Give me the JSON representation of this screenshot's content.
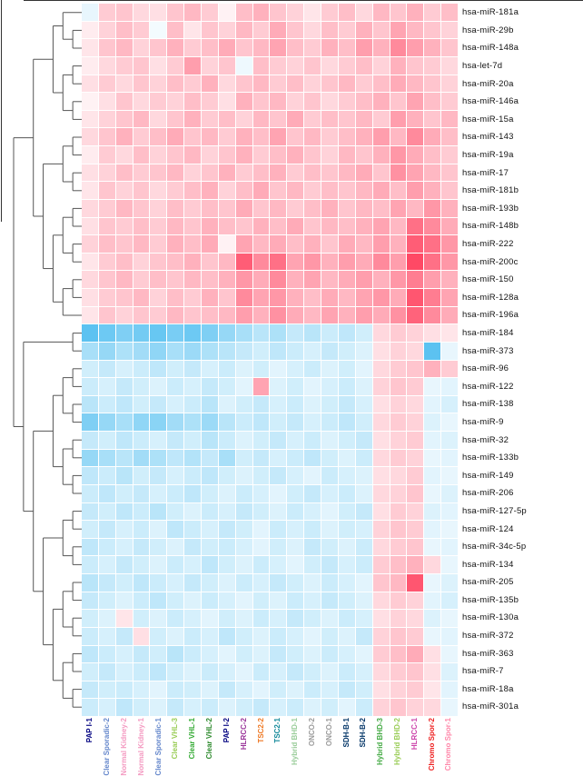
{
  "figure": {
    "background": "#ffffff",
    "dendrogram_line_color": "#555555"
  },
  "chart_data": {
    "type": "heatmap",
    "title": "",
    "xlabel": "",
    "ylabel": "",
    "legend_position": "none",
    "grid": false,
    "rows": [
      "hsa-miR-181a",
      "hsa-miR-29b",
      "hsa-miR-148a",
      "hsa-let-7d",
      "hsa-miR-20a",
      "hsa-miR-146a",
      "hsa-miR-15a",
      "hsa-miR-143",
      "hsa-miR-19a",
      "hsa-miR-17",
      "hsa-miR-181b",
      "hsa-miR-193b",
      "hsa-miR-148b",
      "hsa-miR-222",
      "hsa-miR-200c",
      "hsa-miR-150",
      "hsa-miR-128a",
      "hsa-miR-196a",
      "hsa-miR-184",
      "hsa-miR-373",
      "hsa-miR-96",
      "hsa-miR-122",
      "hsa-miR-138",
      "hsa-miR-9",
      "hsa-miR-32",
      "hsa-miR-133b",
      "hsa-miR-149",
      "hsa-miR-206",
      "hsa-miR-127-5p",
      "hsa-miR-124",
      "hsa-miR-34c-5p",
      "hsa-miR-134",
      "hsa-miR-205",
      "hsa-miR-135b",
      "hsa-miR-130a",
      "hsa-miR-372",
      "hsa-miR-363",
      "hsa-miR-7",
      "hsa-miR-18a",
      "hsa-miR-301a"
    ],
    "columns": [
      {
        "label": "PAP I-1",
        "color": "#000080"
      },
      {
        "label": "Clear Sporadic-2",
        "color": "#6688cc"
      },
      {
        "label": "Normal Kidney-2",
        "color": "#f49ac1"
      },
      {
        "label": "Normal Kidney-1",
        "color": "#f49ac1"
      },
      {
        "label": "Clear Sporadic-1",
        "color": "#6688cc"
      },
      {
        "label": "Clear VHL-3",
        "color": "#99cc55"
      },
      {
        "label": "Clear VHL-1",
        "color": "#33aa33"
      },
      {
        "label": "Clear VHL-2",
        "color": "#2d8a2d"
      },
      {
        "label": "PAP I-2",
        "color": "#000080"
      },
      {
        "label": "HLRCC-2",
        "color": "#993399"
      },
      {
        "label": "TSC2-2",
        "color": "#ee7722"
      },
      {
        "label": "TSC2-1",
        "color": "#118899"
      },
      {
        "label": "Hybrid BHD-1",
        "color": "#99cc99"
      },
      {
        "label": "ONCO-2",
        "color": "#999999"
      },
      {
        "label": "ONCO-1",
        "color": "#999999"
      },
      {
        "label": "SDH-B-1",
        "color": "#003366"
      },
      {
        "label": "SDH-B-2",
        "color": "#003366"
      },
      {
        "label": "Hybrid BHD-3",
        "color": "#44aa44"
      },
      {
        "label": "Hybrid BHD-2",
        "color": "#99cc55"
      },
      {
        "label": "HLRCC-1",
        "color": "#cc44aa"
      },
      {
        "label": "Chromo Spor-2",
        "color": "#ee2222"
      },
      {
        "label": "Chromo Spor-1",
        "color": "#ff88aa"
      }
    ],
    "colorscale": {
      "min": -3,
      "max": 3,
      "negative_color": "#50bef0",
      "zero_color": "#ffffff",
      "positive_color": "#ff3c5a"
    },
    "values": [
      [
        -0.4,
        0.8,
        0.9,
        0.6,
        0.5,
        0.9,
        1.1,
        0.8,
        0.2,
        1.0,
        1.2,
        0.9,
        0.7,
        0.4,
        0.8,
        1.0,
        0.6,
        1.1,
        0.9,
        1.2,
        0.8,
        1.0
      ],
      [
        0.3,
        0.7,
        1.0,
        0.8,
        -0.2,
        1.0,
        0.4,
        0.9,
        0.7,
        1.1,
        0.8,
        1.3,
        0.9,
        0.6,
        1.0,
        0.8,
        1.2,
        0.9,
        1.4,
        1.1,
        0.9,
        0.7
      ],
      [
        0.4,
        0.9,
        1.1,
        0.7,
        0.9,
        1.2,
        0.8,
        1.0,
        1.3,
        0.9,
        1.1,
        1.4,
        1.0,
        0.8,
        1.2,
        1.0,
        1.5,
        1.2,
        1.8,
        1.5,
        1.2,
        0.9
      ],
      [
        0.3,
        0.6,
        0.8,
        0.9,
        0.5,
        0.8,
        1.5,
        0.7,
        0.9,
        -0.3,
        1.0,
        0.8,
        0.7,
        0.9,
        0.6,
        0.8,
        1.0,
        0.7,
        1.2,
        0.9,
        0.8,
        0.6
      ],
      [
        0.5,
        0.8,
        0.6,
        0.9,
        0.7,
        1.0,
        0.8,
        1.2,
        0.6,
        0.9,
        1.1,
        0.8,
        1.0,
        0.7,
        0.9,
        1.1,
        0.8,
        1.0,
        1.3,
        1.1,
        0.9,
        0.7
      ],
      [
        0.2,
        0.5,
        0.9,
        0.6,
        0.8,
        0.7,
        1.0,
        0.8,
        0.5,
        1.2,
        0.9,
        1.1,
        0.7,
        0.9,
        0.6,
        0.8,
        1.0,
        1.2,
        0.9,
        1.4,
        1.0,
        0.8
      ],
      [
        0.4,
        0.7,
        0.9,
        1.1,
        0.6,
        0.9,
        1.2,
        0.8,
        1.0,
        0.7,
        1.1,
        0.9,
        1.3,
        0.8,
        1.0,
        0.9,
        1.1,
        0.8,
        1.5,
        1.2,
        0.9,
        1.1
      ],
      [
        0.6,
        0.9,
        1.2,
        0.8,
        1.0,
        1.3,
        0.9,
        1.1,
        0.8,
        1.2,
        1.0,
        1.4,
        0.9,
        1.1,
        0.8,
        1.0,
        1.2,
        1.5,
        1.1,
        1.8,
        1.3,
        1.0
      ],
      [
        0.3,
        0.8,
        0.6,
        1.0,
        0.7,
        0.9,
        1.1,
        0.7,
        0.9,
        1.2,
        0.8,
        1.0,
        1.2,
        0.9,
        0.7,
        1.1,
        0.9,
        1.2,
        1.6,
        1.3,
        1.0,
        0.8
      ],
      [
        0.5,
        0.7,
        1.0,
        0.8,
        0.9,
        1.1,
        0.7,
        0.9,
        1.2,
        0.8,
        1.0,
        1.2,
        0.8,
        1.0,
        0.9,
        1.1,
        1.3,
        0.9,
        1.7,
        1.4,
        1.1,
        0.9
      ],
      [
        0.4,
        0.9,
        0.7,
        0.9,
        0.6,
        0.8,
        1.0,
        1.2,
        0.7,
        1.0,
        1.3,
        0.9,
        1.1,
        0.8,
        1.0,
        0.9,
        1.1,
        1.3,
        1.0,
        1.5,
        1.2,
        0.9
      ],
      [
        0.6,
        0.8,
        1.1,
        0.9,
        0.7,
        1.0,
        0.8,
        1.0,
        0.9,
        1.3,
        0.9,
        1.1,
        0.8,
        1.0,
        1.2,
        0.9,
        1.1,
        1.0,
        1.4,
        1.1,
        1.6,
        1.2
      ],
      [
        0.5,
        0.9,
        0.8,
        1.0,
        0.8,
        1.1,
        0.9,
        1.2,
        1.0,
        0.9,
        1.2,
        1.0,
        1.3,
        0.9,
        1.1,
        1.0,
        1.2,
        1.4,
        1.1,
        2.2,
        1.8,
        1.3
      ],
      [
        0.7,
        1.0,
        0.9,
        1.1,
        0.8,
        1.2,
        1.0,
        1.3,
        0.2,
        1.4,
        1.1,
        1.3,
        1.0,
        1.2,
        0.9,
        1.3,
        1.1,
        1.5,
        1.2,
        2.5,
        2.2,
        1.6
      ],
      [
        0.4,
        0.8,
        1.0,
        0.7,
        0.9,
        1.0,
        1.2,
        0.9,
        1.1,
        2.5,
        1.8,
        2.2,
        1.4,
        1.6,
        1.2,
        1.5,
        1.3,
        1.8,
        1.5,
        2.8,
        2.2,
        1.6
      ],
      [
        0.6,
        0.9,
        1.1,
        0.8,
        1.0,
        0.9,
        1.1,
        1.0,
        1.2,
        1.6,
        1.3,
        1.8,
        1.2,
        1.4,
        1.1,
        1.3,
        1.5,
        1.2,
        1.6,
        2.0,
        1.5,
        1.2
      ],
      [
        0.5,
        0.8,
        0.9,
        1.1,
        0.7,
        1.0,
        0.8,
        1.2,
        0.9,
        1.8,
        1.4,
        1.6,
        1.2,
        1.0,
        1.3,
        1.1,
        1.4,
        1.6,
        1.3,
        2.6,
        2.0,
        1.4
      ],
      [
        0.4,
        0.9,
        0.7,
        0.9,
        0.8,
        1.1,
        0.9,
        1.0,
        1.1,
        1.5,
        1.2,
        1.7,
        1.3,
        1.1,
        1.4,
        1.2,
        1.5,
        1.3,
        1.7,
        2.4,
        1.8,
        1.3
      ],
      [
        -2.8,
        -2.5,
        -2.2,
        -2.4,
        -2.6,
        -2.3,
        -2.5,
        -2.2,
        -1.8,
        -1.5,
        -1.2,
        -1.4,
        -1.0,
        -1.2,
        -0.9,
        -1.1,
        -0.8,
        0.6,
        0.8,
        0.7,
        0.5,
        0.4
      ],
      [
        -1.5,
        -1.8,
        -1.4,
        -1.6,
        -1.9,
        -1.5,
        -1.7,
        -1.4,
        -1.2,
        -1.0,
        -0.8,
        -1.1,
        -0.9,
        -0.7,
        -1.0,
        -0.8,
        -0.6,
        0.5,
        0.7,
        0.6,
        -2.8,
        -0.4
      ],
      [
        -0.8,
        -1.0,
        -0.7,
        -0.9,
        -1.1,
        -0.8,
        -1.0,
        -0.7,
        -0.9,
        -0.6,
        -0.8,
        -0.5,
        -0.7,
        -0.9,
        -0.6,
        -0.8,
        -0.5,
        0.6,
        0.8,
        0.9,
        1.2,
        0.8
      ],
      [
        -0.9,
        -0.7,
        -1.0,
        -0.8,
        -0.6,
        -0.9,
        -0.7,
        -1.0,
        -0.8,
        -0.5,
        1.4,
        -0.6,
        -0.8,
        -0.5,
        -0.7,
        -0.9,
        -0.6,
        0.7,
        0.9,
        0.8,
        -0.4,
        -0.5
      ],
      [
        -1.2,
        -0.9,
        -1.1,
        -0.8,
        -1.0,
        -0.7,
        -0.9,
        -1.2,
        -0.6,
        -0.8,
        -1.0,
        -0.7,
        -0.9,
        -0.6,
        -0.8,
        -1.0,
        -0.7,
        0.5,
        0.7,
        0.6,
        -0.5,
        -0.7
      ],
      [
        -2.2,
        -1.8,
        -1.5,
        -1.9,
        -2.0,
        -1.6,
        -1.4,
        -1.7,
        -1.2,
        -0.9,
        -1.1,
        -0.8,
        -1.0,
        -0.7,
        -0.9,
        -1.1,
        -0.8,
        0.6,
        0.8,
        0.7,
        -0.6,
        -0.4
      ],
      [
        -1.0,
        -0.8,
        -1.1,
        -0.9,
        -0.7,
        -1.0,
        -0.8,
        -1.2,
        -0.9,
        -0.6,
        -0.8,
        -1.0,
        -0.7,
        -0.9,
        -0.6,
        -0.8,
        -1.0,
        0.5,
        0.7,
        0.8,
        -0.5,
        -0.6
      ],
      [
        -1.8,
        -1.5,
        -1.2,
        -1.6,
        -1.4,
        -1.1,
        -1.3,
        -1.0,
        -1.5,
        -0.8,
        -1.0,
        -0.7,
        -0.9,
        -1.1,
        -0.8,
        -0.6,
        -0.9,
        0.6,
        0.8,
        0.7,
        -0.4,
        -0.5
      ],
      [
        -1.1,
        -0.9,
        -1.2,
        -0.8,
        -1.0,
        -0.7,
        -0.9,
        -1.1,
        -0.8,
        -0.6,
        -0.8,
        -1.0,
        -0.7,
        -0.5,
        -0.9,
        -0.7,
        -0.6,
        0.5,
        0.6,
        0.8,
        -0.5,
        -0.4
      ],
      [
        -0.9,
        -1.1,
        -0.8,
        -1.0,
        -0.7,
        -0.9,
        -1.1,
        -0.8,
        -0.6,
        -0.9,
        -0.7,
        -0.5,
        -0.8,
        -1.0,
        -0.7,
        -0.9,
        -0.6,
        0.6,
        0.7,
        0.9,
        -0.4,
        -0.6
      ],
      [
        -1.0,
        -0.8,
        -1.1,
        -0.9,
        -1.2,
        -0.8,
        -0.6,
        -0.9,
        -0.7,
        -1.0,
        -0.8,
        -0.6,
        -0.9,
        -0.7,
        -0.5,
        -0.8,
        -1.0,
        0.5,
        0.8,
        0.7,
        -0.6,
        -0.5
      ],
      [
        -0.8,
        -1.0,
        -0.7,
        -0.9,
        -0.6,
        -1.1,
        -0.9,
        -0.7,
        -1.0,
        -0.8,
        -0.5,
        -0.9,
        -0.7,
        -0.9,
        -0.6,
        -0.8,
        -0.7,
        0.7,
        0.9,
        0.8,
        -0.5,
        -0.4
      ],
      [
        -1.1,
        -0.9,
        -0.7,
        -1.0,
        -0.8,
        -0.6,
        -1.0,
        -0.8,
        -0.9,
        -0.7,
        -0.5,
        -0.8,
        -0.6,
        -1.0,
        -0.8,
        -0.6,
        -0.9,
        0.6,
        0.8,
        0.9,
        -0.4,
        -0.5
      ],
      [
        -0.9,
        -0.7,
        -1.0,
        -0.8,
        -0.6,
        -0.9,
        -0.7,
        -1.1,
        -0.8,
        -0.6,
        -0.9,
        -0.7,
        -0.5,
        -0.8,
        -1.0,
        -0.7,
        -0.9,
        0.8,
        1.0,
        1.2,
        0.6,
        -0.4
      ],
      [
        -1.2,
        -1.0,
        -0.8,
        -1.1,
        -0.9,
        -0.7,
        -1.0,
        -0.8,
        -0.6,
        -0.9,
        -0.7,
        -1.0,
        -0.8,
        -0.6,
        -0.9,
        -0.7,
        -0.5,
        0.9,
        1.1,
        2.6,
        -0.4,
        -0.6
      ],
      [
        -1.0,
        -0.8,
        -0.6,
        -0.9,
        -1.1,
        -0.8,
        -0.6,
        -0.9,
        -0.7,
        -0.5,
        -0.8,
        -0.6,
        -0.9,
        -0.7,
        -1.0,
        -0.8,
        -0.6,
        0.6,
        0.8,
        0.7,
        -0.5,
        -0.7
      ],
      [
        -0.8,
        -0.6,
        0.4,
        -0.8,
        -0.6,
        -0.9,
        -0.7,
        -0.5,
        -0.8,
        -0.6,
        -0.9,
        -0.7,
        -1.0,
        -0.8,
        -0.6,
        -0.9,
        -0.7,
        0.5,
        0.7,
        0.6,
        -0.6,
        -0.4
      ],
      [
        -0.9,
        -0.7,
        -1.0,
        0.5,
        -0.8,
        -0.6,
        -0.9,
        -0.7,
        -1.1,
        -0.8,
        -0.6,
        -0.9,
        -0.7,
        -0.5,
        -0.8,
        -0.6,
        -1.0,
        0.7,
        0.9,
        0.8,
        -0.4,
        -0.5
      ],
      [
        -1.1,
        -0.9,
        -0.7,
        -1.0,
        -0.8,
        -1.2,
        -0.9,
        -0.7,
        -0.5,
        -0.8,
        -0.6,
        -1.0,
        -0.8,
        -0.6,
        -0.9,
        -0.7,
        -0.5,
        0.8,
        1.0,
        1.3,
        0.5,
        -0.4
      ],
      [
        -0.8,
        -1.0,
        -0.7,
        -0.9,
        -1.1,
        -0.8,
        -0.6,
        -0.9,
        -0.7,
        -0.5,
        -0.9,
        -0.7,
        -1.0,
        -0.8,
        -0.6,
        -0.9,
        -0.7,
        0.6,
        0.8,
        0.9,
        0.5,
        -0.6
      ],
      [
        -1.0,
        -0.8,
        -0.9,
        -0.7,
        -0.5,
        -0.9,
        -0.8,
        -0.6,
        -1.0,
        -0.7,
        -0.5,
        -0.8,
        -0.6,
        -0.9,
        -0.7,
        -1.0,
        -0.8,
        0.5,
        0.7,
        0.8,
        0.4,
        -0.5
      ],
      [
        -0.9,
        -0.7,
        -1.1,
        -0.8,
        -0.6,
        -1.0,
        -0.7,
        -0.9,
        -0.6,
        -0.8,
        -1.0,
        -0.7,
        -0.9,
        -0.6,
        -0.8,
        -0.5,
        -0.9,
        0.7,
        0.9,
        0.7,
        0.6,
        -0.4
      ]
    ],
    "row_dendrogram": [
      [
        [
          [
            0,
            [
              1,
              2
            ]
          ],
          [
            [
              3,
              4
            ],
            [
              5,
              6
            ]
          ]
        ],
        [
          [
            [
              7,
              8
            ],
            [
              9,
              10
            ]
          ],
          [
            [
              [
                11,
                12
              ],
              [
                13,
                14
              ]
            ],
            [
              [
                15,
                16
              ],
              17
            ]
          ]
        ]
      ],
      [
        [
          18,
          19
        ],
        [
          [
            [
              [
                20,
                21
              ],
              [
                22,
                23
              ]
            ],
            [
              [
                24,
                25
              ],
              [
                26,
                27
              ]
            ]
          ],
          [
            [
              [
                28,
                29
              ],
              [
                30,
                31
              ]
            ],
            [
              [
                [
                  32,
                  33
                ],
                [
                  34,
                  35
                ]
              ],
              [
                [
                  36,
                  37
                ],
                [
                  38,
                  39
                ]
              ]
            ]
          ]
        ]
      ]
    ]
  }
}
